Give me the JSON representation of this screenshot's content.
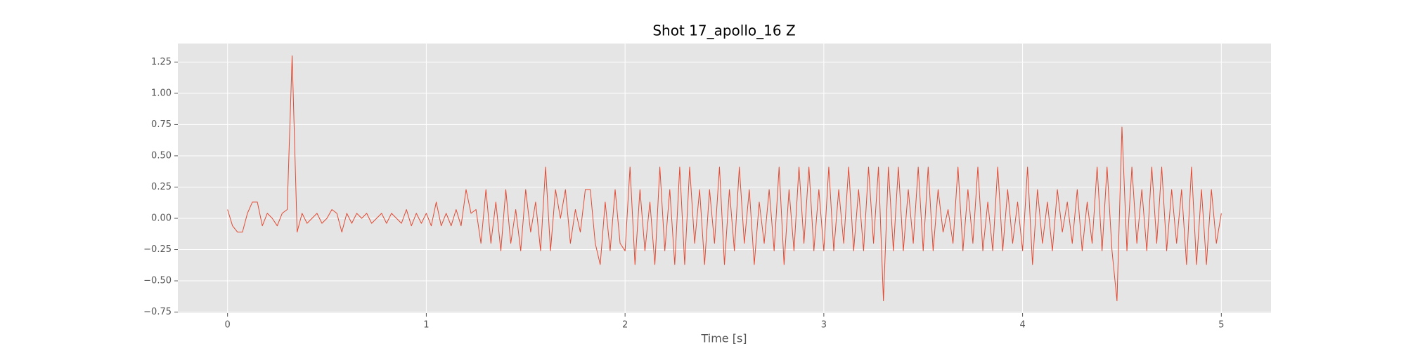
{
  "chart_data": {
    "type": "line",
    "title": "Shot 17_apollo_16 Z",
    "xlabel": "Time [s]",
    "color": "#e24a33",
    "grid": true,
    "xlim": [
      -0.25,
      5.25
    ],
    "ylim": [
      -0.758,
      1.398
    ],
    "xticks": [
      0,
      1,
      2,
      3,
      4,
      5
    ],
    "yticks": [
      {
        "value": -0.75,
        "label": "−0.75"
      },
      {
        "value": -0.5,
        "label": "−0.50"
      },
      {
        "value": -0.25,
        "label": "−0.25"
      },
      {
        "value": 0,
        "label": "0.00"
      },
      {
        "value": 0.25,
        "label": "0.25"
      },
      {
        "value": 0.5,
        "label": "0.50"
      },
      {
        "value": 0.75,
        "label": "0.75"
      },
      {
        "value": 1.0,
        "label": "1.00"
      },
      {
        "value": 1.25,
        "label": "1.25"
      }
    ],
    "x": [
      0,
      0.025,
      0.05,
      0.075,
      0.1,
      0.125,
      0.15,
      0.175,
      0.2,
      0.225,
      0.25,
      0.275,
      0.3,
      0.325,
      0.35,
      0.375,
      0.4,
      0.425,
      0.45,
      0.475,
      0.5,
      0.525,
      0.55,
      0.575,
      0.6,
      0.625,
      0.65,
      0.675,
      0.7,
      0.725,
      0.75,
      0.775,
      0.8,
      0.825,
      0.85,
      0.875,
      0.9,
      0.925,
      0.95,
      0.975,
      1.0,
      1.025,
      1.05,
      1.075,
      1.1,
      1.125,
      1.15,
      1.175,
      1.2,
      1.225,
      1.25,
      1.275,
      1.3,
      1.325,
      1.35,
      1.375,
      1.4,
      1.425,
      1.45,
      1.475,
      1.5,
      1.525,
      1.55,
      1.575,
      1.6,
      1.625,
      1.65,
      1.675,
      1.7,
      1.725,
      1.75,
      1.775,
      1.8,
      1.825,
      1.85,
      1.875,
      1.9,
      1.925,
      1.95,
      1.975,
      2.0,
      2.025,
      2.05,
      2.075,
      2.1,
      2.125,
      2.15,
      2.175,
      2.2,
      2.225,
      2.25,
      2.275,
      2.3,
      2.325,
      2.35,
      2.375,
      2.4,
      2.425,
      2.45,
      2.475,
      2.5,
      2.525,
      2.55,
      2.575,
      2.6,
      2.625,
      2.65,
      2.675,
      2.7,
      2.725,
      2.75,
      2.775,
      2.8,
      2.825,
      2.85,
      2.875,
      2.9,
      2.925,
      2.95,
      2.975,
      3.0,
      3.025,
      3.05,
      3.075,
      3.1,
      3.125,
      3.15,
      3.175,
      3.2,
      3.225,
      3.25,
      3.275,
      3.3,
      3.325,
      3.35,
      3.375,
      3.4,
      3.425,
      3.45,
      3.475,
      3.5,
      3.525,
      3.55,
      3.575,
      3.6,
      3.625,
      3.65,
      3.675,
      3.7,
      3.725,
      3.75,
      3.775,
      3.8,
      3.825,
      3.85,
      3.875,
      3.9,
      3.925,
      3.95,
      3.975,
      4.0,
      4.025,
      4.05,
      4.075,
      4.1,
      4.125,
      4.15,
      4.175,
      4.2,
      4.225,
      4.25,
      4.275,
      4.3,
      4.325,
      4.35,
      4.375,
      4.4,
      4.425,
      4.45,
      4.475,
      4.5,
      4.525,
      4.55,
      4.575,
      4.6,
      4.625,
      4.65,
      4.675,
      4.7,
      4.725,
      4.75,
      4.775,
      4.8,
      4.825,
      4.85,
      4.875,
      4.9,
      4.925,
      4.95,
      4.975,
      5.0
    ],
    "values": [
      0.07,
      -0.06,
      -0.11,
      -0.11,
      0.04,
      0.13,
      0.13,
      -0.06,
      0.04,
      0.0,
      -0.06,
      0.04,
      0.07,
      1.3,
      -0.11,
      0.04,
      -0.04,
      0.0,
      0.04,
      -0.04,
      0.0,
      0.07,
      0.04,
      -0.11,
      0.04,
      -0.04,
      0.04,
      0.0,
      0.04,
      -0.04,
      0.0,
      0.04,
      -0.04,
      0.04,
      0.0,
      -0.04,
      0.07,
      -0.06,
      0.04,
      -0.04,
      0.04,
      -0.06,
      0.13,
      -0.06,
      0.04,
      -0.06,
      0.07,
      -0.06,
      0.23,
      0.04,
      0.07,
      -0.2,
      0.23,
      -0.2,
      0.13,
      -0.26,
      0.23,
      -0.2,
      0.07,
      -0.26,
      0.23,
      -0.11,
      0.13,
      -0.26,
      0.41,
      -0.26,
      0.23,
      0.0,
      0.23,
      -0.2,
      0.07,
      -0.11,
      0.23,
      0.23,
      -0.2,
      -0.37,
      0.13,
      -0.26,
      0.23,
      -0.2,
      -0.26,
      0.41,
      -0.37,
      0.23,
      -0.26,
      0.13,
      -0.37,
      0.41,
      -0.26,
      0.23,
      -0.37,
      0.41,
      -0.37,
      0.41,
      -0.2,
      0.23,
      -0.37,
      0.23,
      -0.2,
      0.41,
      -0.37,
      0.23,
      -0.26,
      0.41,
      -0.2,
      0.23,
      -0.37,
      0.13,
      -0.2,
      0.23,
      -0.26,
      0.41,
      -0.37,
      0.23,
      -0.26,
      0.41,
      -0.2,
      0.41,
      -0.26,
      0.23,
      -0.26,
      0.41,
      -0.26,
      0.23,
      -0.2,
      0.41,
      -0.26,
      0.23,
      -0.26,
      0.41,
      -0.2,
      0.41,
      -0.66,
      0.41,
      -0.26,
      0.41,
      -0.26,
      0.23,
      -0.2,
      0.41,
      -0.26,
      0.41,
      -0.26,
      0.23,
      -0.11,
      0.07,
      -0.2,
      0.41,
      -0.26,
      0.23,
      -0.2,
      0.41,
      -0.26,
      0.13,
      -0.26,
      0.41,
      -0.26,
      0.23,
      -0.2,
      0.13,
      -0.26,
      0.41,
      -0.37,
      0.23,
      -0.2,
      0.13,
      -0.26,
      0.23,
      -0.11,
      0.13,
      -0.2,
      0.23,
      -0.26,
      0.13,
      -0.2,
      0.41,
      -0.26,
      0.41,
      -0.26,
      -0.66,
      0.73,
      -0.26,
      0.41,
      -0.2,
      0.23,
      -0.26,
      0.41,
      -0.2,
      0.41,
      -0.26,
      0.23,
      -0.2,
      0.23,
      -0.37,
      0.41,
      -0.37,
      0.23,
      -0.37,
      0.23,
      -0.2,
      0.04
    ]
  }
}
